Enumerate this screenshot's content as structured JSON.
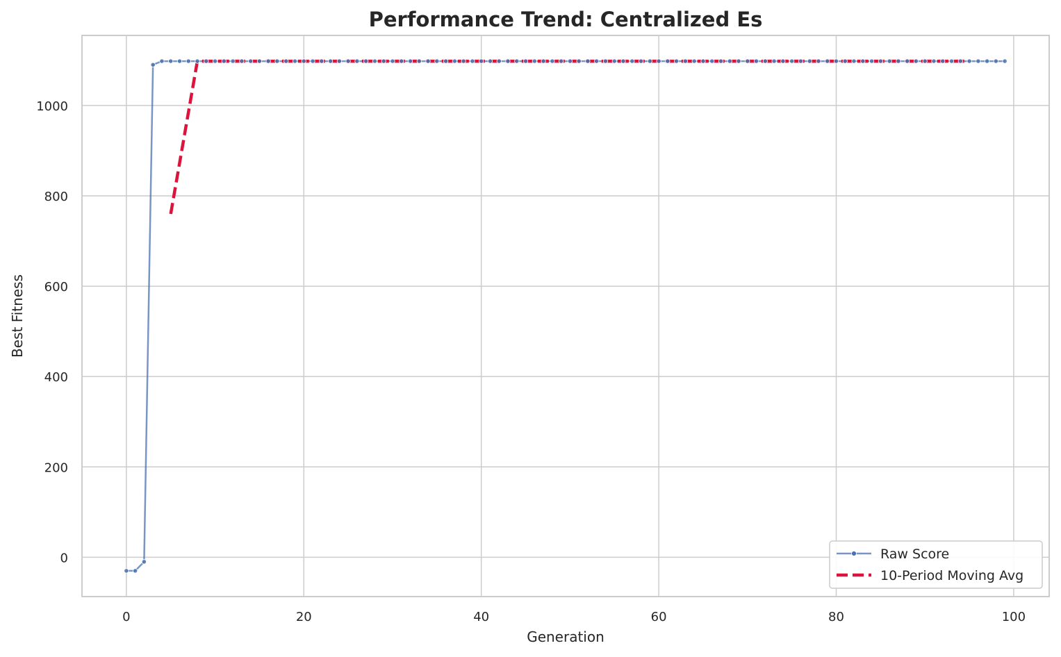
{
  "chart_data": {
    "type": "line",
    "title": "Performance Trend: Centralized Es",
    "xlabel": "Generation",
    "ylabel": "Best Fitness",
    "xlim": [
      -5,
      104
    ],
    "ylim": [
      -87,
      1155
    ],
    "xticks": [
      0,
      20,
      40,
      60,
      80,
      100
    ],
    "yticks": [
      0,
      200,
      400,
      600,
      800,
      1000
    ],
    "grid": true,
    "legend_position": "lower-right",
    "colors": {
      "raw": "#4c72b0",
      "ma": "#dc143c",
      "grid": "#cccccc"
    },
    "series": [
      {
        "name": "Raw Score",
        "style": "solid-line-with-dot-markers",
        "x": [
          0,
          1,
          2,
          3,
          4,
          5,
          6,
          7,
          8,
          9,
          10,
          11,
          12,
          13,
          14,
          15,
          16,
          17,
          18,
          19,
          20,
          21,
          22,
          23,
          24,
          25,
          26,
          27,
          28,
          29,
          30,
          31,
          32,
          33,
          34,
          35,
          36,
          37,
          38,
          39,
          40,
          41,
          42,
          43,
          44,
          45,
          46,
          47,
          48,
          49,
          50,
          51,
          52,
          53,
          54,
          55,
          56,
          57,
          58,
          59,
          60,
          61,
          62,
          63,
          64,
          65,
          66,
          67,
          68,
          69,
          70,
          71,
          72,
          73,
          74,
          75,
          76,
          77,
          78,
          79,
          80,
          81,
          82,
          83,
          84,
          85,
          86,
          87,
          88,
          89,
          90,
          91,
          92,
          93,
          94,
          95,
          96,
          97,
          98,
          99
        ],
        "y": [
          -30,
          -30,
          -10,
          1090,
          1098,
          1098,
          1098,
          1098,
          1098,
          1098,
          1098,
          1098,
          1098,
          1098,
          1098,
          1098,
          1098,
          1098,
          1098,
          1098,
          1098,
          1098,
          1098,
          1098,
          1098,
          1098,
          1098,
          1098,
          1098,
          1098,
          1098,
          1098,
          1098,
          1098,
          1098,
          1098,
          1098,
          1098,
          1098,
          1098,
          1098,
          1098,
          1098,
          1098,
          1098,
          1098,
          1098,
          1098,
          1098,
          1098,
          1098,
          1098,
          1098,
          1098,
          1098,
          1098,
          1098,
          1098,
          1098,
          1098,
          1098,
          1098,
          1098,
          1098,
          1098,
          1098,
          1098,
          1098,
          1098,
          1098,
          1098,
          1098,
          1098,
          1098,
          1098,
          1098,
          1098,
          1098,
          1098,
          1098,
          1098,
          1098,
          1098,
          1098,
          1098,
          1098,
          1098,
          1098,
          1098,
          1098,
          1098,
          1098,
          1098,
          1098,
          1098,
          1098,
          1098,
          1098,
          1098,
          1098
        ]
      },
      {
        "name": "10-Period Moving Avg",
        "style": "dashed-line",
        "x": [
          5,
          8,
          95
        ],
        "y": [
          760,
          1098,
          1098
        ]
      }
    ]
  }
}
